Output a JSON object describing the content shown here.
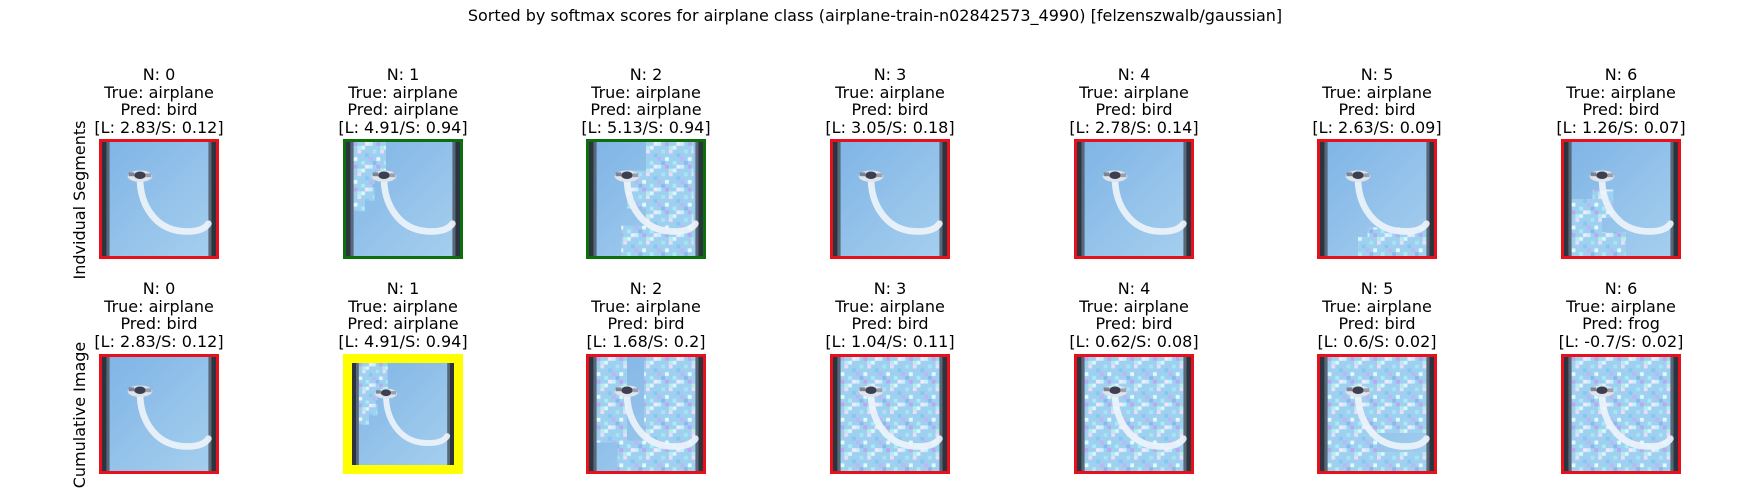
{
  "title": "Sorted by softmax scores for airplane class (airplane-train-n02842573_4990) [felzenszwalb/gaussian]",
  "row_labels": [
    "Indvidual Segments",
    "Cumulative Image"
  ],
  "colors": {
    "red": "#e8101a",
    "green": "#0c6f0c",
    "yellow": "#ffff00",
    "sky": "#8cc0e9"
  },
  "chart_data": {
    "type": "image-grid",
    "rows": [
      {
        "name": "Indvidual Segments",
        "panels": [
          {
            "n": "N: 0",
            "true": "True: airplane",
            "pred": "Pred: bird",
            "score": "[L: 2.83/S: 0.12]",
            "L": 2.83,
            "S": 0.12,
            "border": "red",
            "noise": "none"
          },
          {
            "n": "N: 1",
            "true": "True: airplane",
            "pred": "Pred: airplane",
            "score": "[L: 4.91/S: 0.94]",
            "L": 4.91,
            "S": 0.94,
            "border": "green",
            "noise": "top-left"
          },
          {
            "n": "N: 2",
            "true": "True: airplane",
            "pred": "Pred: airplane",
            "score": "[L: 5.13/S: 0.94]",
            "L": 5.13,
            "S": 0.94,
            "border": "green",
            "noise": "right"
          },
          {
            "n": "N: 3",
            "true": "True: airplane",
            "pred": "Pred: bird",
            "score": "[L: 3.05/S: 0.18]",
            "L": 3.05,
            "S": 0.18,
            "border": "red",
            "noise": "none"
          },
          {
            "n": "N: 4",
            "true": "True: airplane",
            "pred": "Pred: bird",
            "score": "[L: 2.78/S: 0.14]",
            "L": 2.78,
            "S": 0.14,
            "border": "red",
            "noise": "none"
          },
          {
            "n": "N: 5",
            "true": "True: airplane",
            "pred": "Pred: bird",
            "score": "[L: 2.63/S: 0.09]",
            "L": 2.63,
            "S": 0.09,
            "border": "red",
            "noise": "bottom"
          },
          {
            "n": "N: 6",
            "true": "True: airplane",
            "pred": "Pred: bird",
            "score": "[L: 1.26/S: 0.07]",
            "L": 1.26,
            "S": 0.07,
            "border": "red",
            "noise": "bottom-left"
          }
        ]
      },
      {
        "name": "Cumulative Image",
        "panels": [
          {
            "n": "N: 0",
            "true": "True: airplane",
            "pred": "Pred: bird",
            "score": "[L: 2.83/S: 0.12]",
            "L": 2.83,
            "S": 0.12,
            "border": "red",
            "noise": "none"
          },
          {
            "n": "N: 1",
            "true": "True: airplane",
            "pred": "Pred: airplane",
            "score": "[L: 4.91/S: 0.94]",
            "L": 4.91,
            "S": 0.94,
            "border": "yellow",
            "noise": "top-left"
          },
          {
            "n": "N: 2",
            "true": "True: airplane",
            "pred": "Pred: bird",
            "score": "[L: 1.68/S: 0.2]",
            "L": 1.68,
            "S": 0.2,
            "border": "red",
            "noise": "left-right"
          },
          {
            "n": "N: 3",
            "true": "True: airplane",
            "pred": "Pred: bird",
            "score": "[L: 1.04/S: 0.11]",
            "L": 1.04,
            "S": 0.11,
            "border": "red",
            "noise": "most"
          },
          {
            "n": "N: 4",
            "true": "True: airplane",
            "pred": "Pred: bird",
            "score": "[L: 0.62/S: 0.08]",
            "L": 0.62,
            "S": 0.08,
            "border": "red",
            "noise": "most"
          },
          {
            "n": "N: 5",
            "true": "True: airplane",
            "pred": "Pred: bird",
            "score": "[L: 0.6/S: 0.02]",
            "L": 0.6,
            "S": 0.02,
            "border": "red",
            "noise": "most-bottom"
          },
          {
            "n": "N: 6",
            "true": "True: airplane",
            "pred": "Pred: frog",
            "score": "[L: -0.7/S: 0.02]",
            "L": -0.7,
            "S": 0.02,
            "border": "red",
            "noise": "all"
          }
        ]
      }
    ]
  }
}
